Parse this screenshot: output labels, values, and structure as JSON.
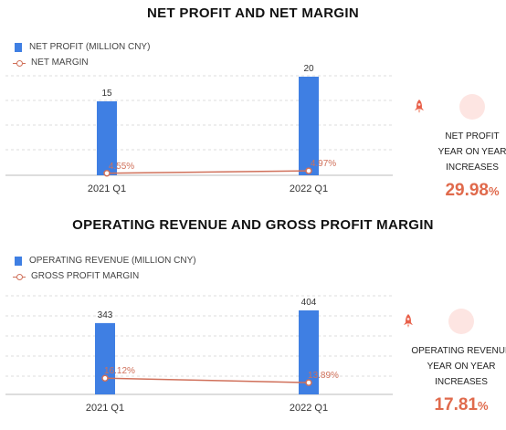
{
  "panels": [
    {
      "title": "NET PROFIT AND NET MARGIN",
      "legend_bar": "NET PROFIT (MILLION CNY)",
      "legend_line": "NET MARGIN",
      "side_label_1": "NET PROFIT",
      "side_label_2": "YEAR ON YEAR INCREASES",
      "side_value": "29.98",
      "side_unit": "%"
    },
    {
      "title": "OPERATING REVENUE AND GROSS PROFIT MARGIN",
      "legend_bar": "OPERATING REVENUE (MILLION CNY)",
      "legend_line": "GROSS PROFIT MARGIN",
      "side_label_1": "OPERATING REVENUE",
      "side_label_2": "YEAR ON YEAR INCREASES",
      "side_value": "17.81",
      "side_unit": "%"
    }
  ],
  "colors": {
    "bar": "#3f7fe3",
    "line": "#d0705a",
    "accent": "#e06a4c",
    "grid": "#dcdcdc"
  },
  "icons": [
    "rocket-icon",
    "rocket-icon"
  ],
  "chart_data": [
    {
      "type": "bar",
      "title": "NET PROFIT AND NET MARGIN",
      "categories": [
        "2021 Q1",
        "2022 Q1"
      ],
      "series": [
        {
          "name": "NET PROFIT (MILLION CNY)",
          "type": "bar",
          "values": [
            15,
            20
          ],
          "labels": [
            "15",
            "20"
          ]
        },
        {
          "name": "NET MARGIN",
          "type": "line",
          "values": [
            4.55,
            4.97
          ],
          "labels": [
            "4.55%",
            "4.97%"
          ]
        }
      ],
      "grid": true,
      "legend": "top-left"
    },
    {
      "type": "bar",
      "title": "OPERATING REVENUE AND GROSS PROFIT MARGIN",
      "categories": [
        "2021 Q1",
        "2022 Q1"
      ],
      "series": [
        {
          "name": "OPERATING REVENUE (MILLION CNY)",
          "type": "bar",
          "values": [
            343,
            404
          ],
          "labels": [
            "343",
            "404"
          ]
        },
        {
          "name": "GROSS PROFIT MARGIN",
          "type": "line",
          "values": [
            16.12,
            13.89
          ],
          "labels": [
            "16.12%",
            "13.89%"
          ]
        }
      ],
      "grid": true,
      "legend": "top-left"
    }
  ]
}
